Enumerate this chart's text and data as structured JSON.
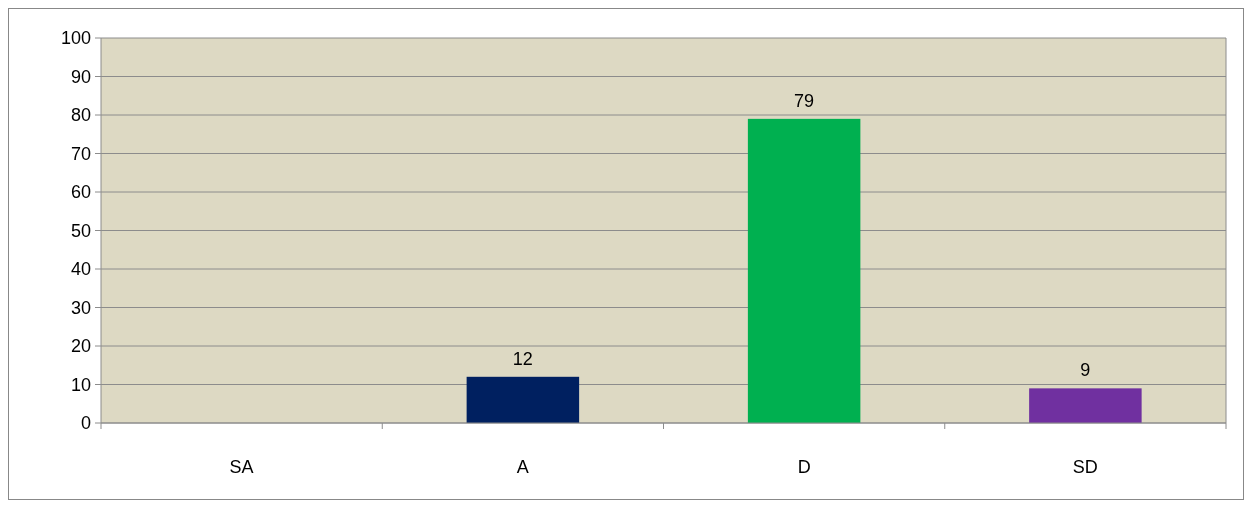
{
  "chart_data": {
    "type": "bar",
    "categories": [
      "SA",
      "A",
      "D",
      "SD"
    ],
    "values": [
      0,
      12,
      79,
      9
    ],
    "colors": [
      "#002060",
      "#002060",
      "#00b050",
      "#7030a0"
    ],
    "value_labels": [
      null,
      "12",
      "79",
      "9"
    ],
    "ylim": [
      0,
      100
    ],
    "yticks": [
      0,
      10,
      20,
      30,
      40,
      50,
      60,
      70,
      80,
      90,
      100
    ],
    "grid": "y"
  }
}
